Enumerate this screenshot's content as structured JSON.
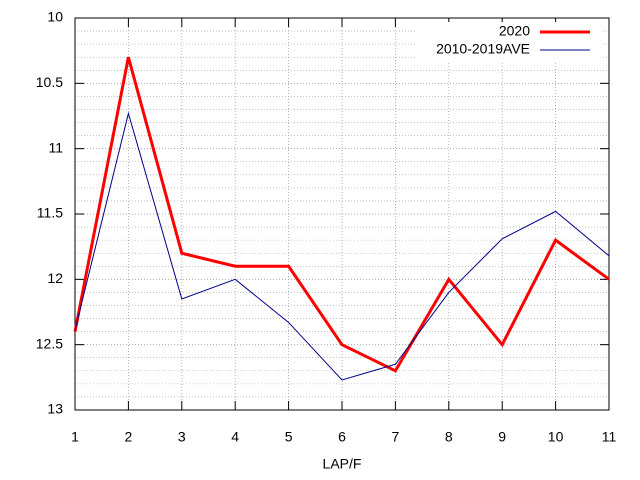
{
  "chart_data": {
    "type": "line",
    "x_label": "LAP/F",
    "x": [
      1,
      2,
      3,
      4,
      5,
      6,
      7,
      8,
      9,
      10,
      11
    ],
    "series": [
      {
        "name": "2020",
        "color": "#ff0000",
        "values": [
          12.4,
          10.3,
          11.8,
          11.9,
          11.9,
          12.5,
          12.7,
          12.0,
          12.5,
          11.7,
          12.0
        ]
      },
      {
        "name": "2010-2019AVE",
        "color": "#00008b",
        "values": [
          12.39,
          10.73,
          12.15,
          12.0,
          12.33,
          12.77,
          12.65,
          12.1,
          11.69,
          11.48,
          11.82
        ]
      }
    ],
    "xlim": [
      1,
      11
    ],
    "xticks": [
      1,
      2,
      3,
      4,
      5,
      6,
      7,
      8,
      9,
      10,
      11
    ],
    "ylim": [
      10,
      13
    ],
    "yticks": [
      10,
      10.5,
      11,
      11.5,
      12,
      12.5,
      13
    ],
    "y_inverted": true,
    "y_minor_step": 0.1,
    "grid": true,
    "legend": "top-right"
  }
}
